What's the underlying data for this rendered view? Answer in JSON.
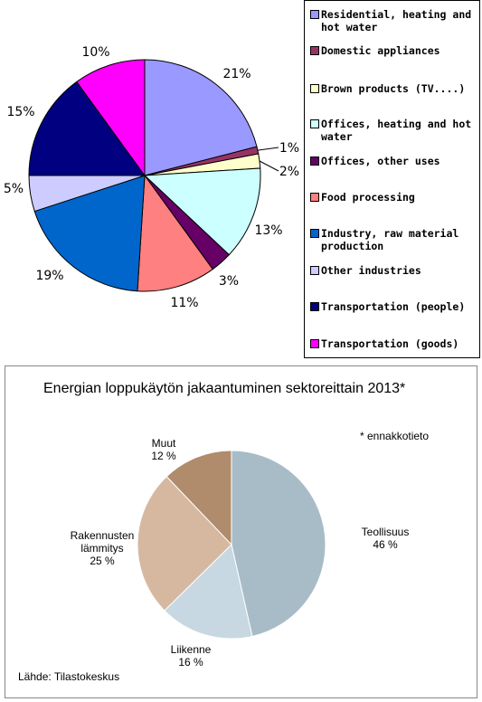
{
  "chart_data": [
    {
      "type": "pie",
      "title": "",
      "slices": [
        {
          "label": "Residential, heating and hot water",
          "value": 21,
          "label_text": "21%",
          "color": "#9999ff"
        },
        {
          "label": "Domestic appliances",
          "value": 1,
          "label_text": "1%",
          "color": "#993366"
        },
        {
          "label": "Brown products (TV....)",
          "value": 2,
          "label_text": "2%",
          "color": "#ffffcc"
        },
        {
          "label": "Offices, heating and hot water",
          "value": 13,
          "label_text": "13%",
          "color": "#ccffff"
        },
        {
          "label": "Offices, other uses",
          "value": 3,
          "label_text": "3%",
          "color": "#660066"
        },
        {
          "label": "Food processing",
          "value": 11,
          "label_text": "11%",
          "color": "#ff8080"
        },
        {
          "label": "Industry, raw material production",
          "value": 19,
          "label_text": "19%",
          "color": "#0066cc"
        },
        {
          "label": "Other industries",
          "value": 5,
          "label_text": "5%",
          "color": "#ccccff"
        },
        {
          "label": "Transportation (people)",
          "value": 15,
          "label_text": "15%",
          "color": "#000080"
        },
        {
          "label": "Transportation (goods)",
          "value": 10,
          "label_text": "10%",
          "color": "#ff00ff"
        }
      ],
      "legend": {
        "placement": "right"
      }
    },
    {
      "type": "pie",
      "title": "Energian loppukäytön jakaantuminen sektoreittain 2013*",
      "note": "* ennakkotieto",
      "source": "Lähde: Tilastokeskus",
      "slices": [
        {
          "label_lines": [
            "Teollisuus"
          ],
          "value": 46,
          "label_text": "46 %",
          "color": "#a8bcc8"
        },
        {
          "label_lines": [
            "Liikenne"
          ],
          "value": 16,
          "label_text": "16 %",
          "color": "#c8d8e2"
        },
        {
          "label_lines": [
            "Rakennusten",
            "lämmitys"
          ],
          "value": 25,
          "label_text": "25 %",
          "color": "#d6b8a0"
        },
        {
          "label_lines": [
            "Muut"
          ],
          "value": 12,
          "label_text": "12 %",
          "color": "#b08c6c"
        }
      ]
    }
  ]
}
